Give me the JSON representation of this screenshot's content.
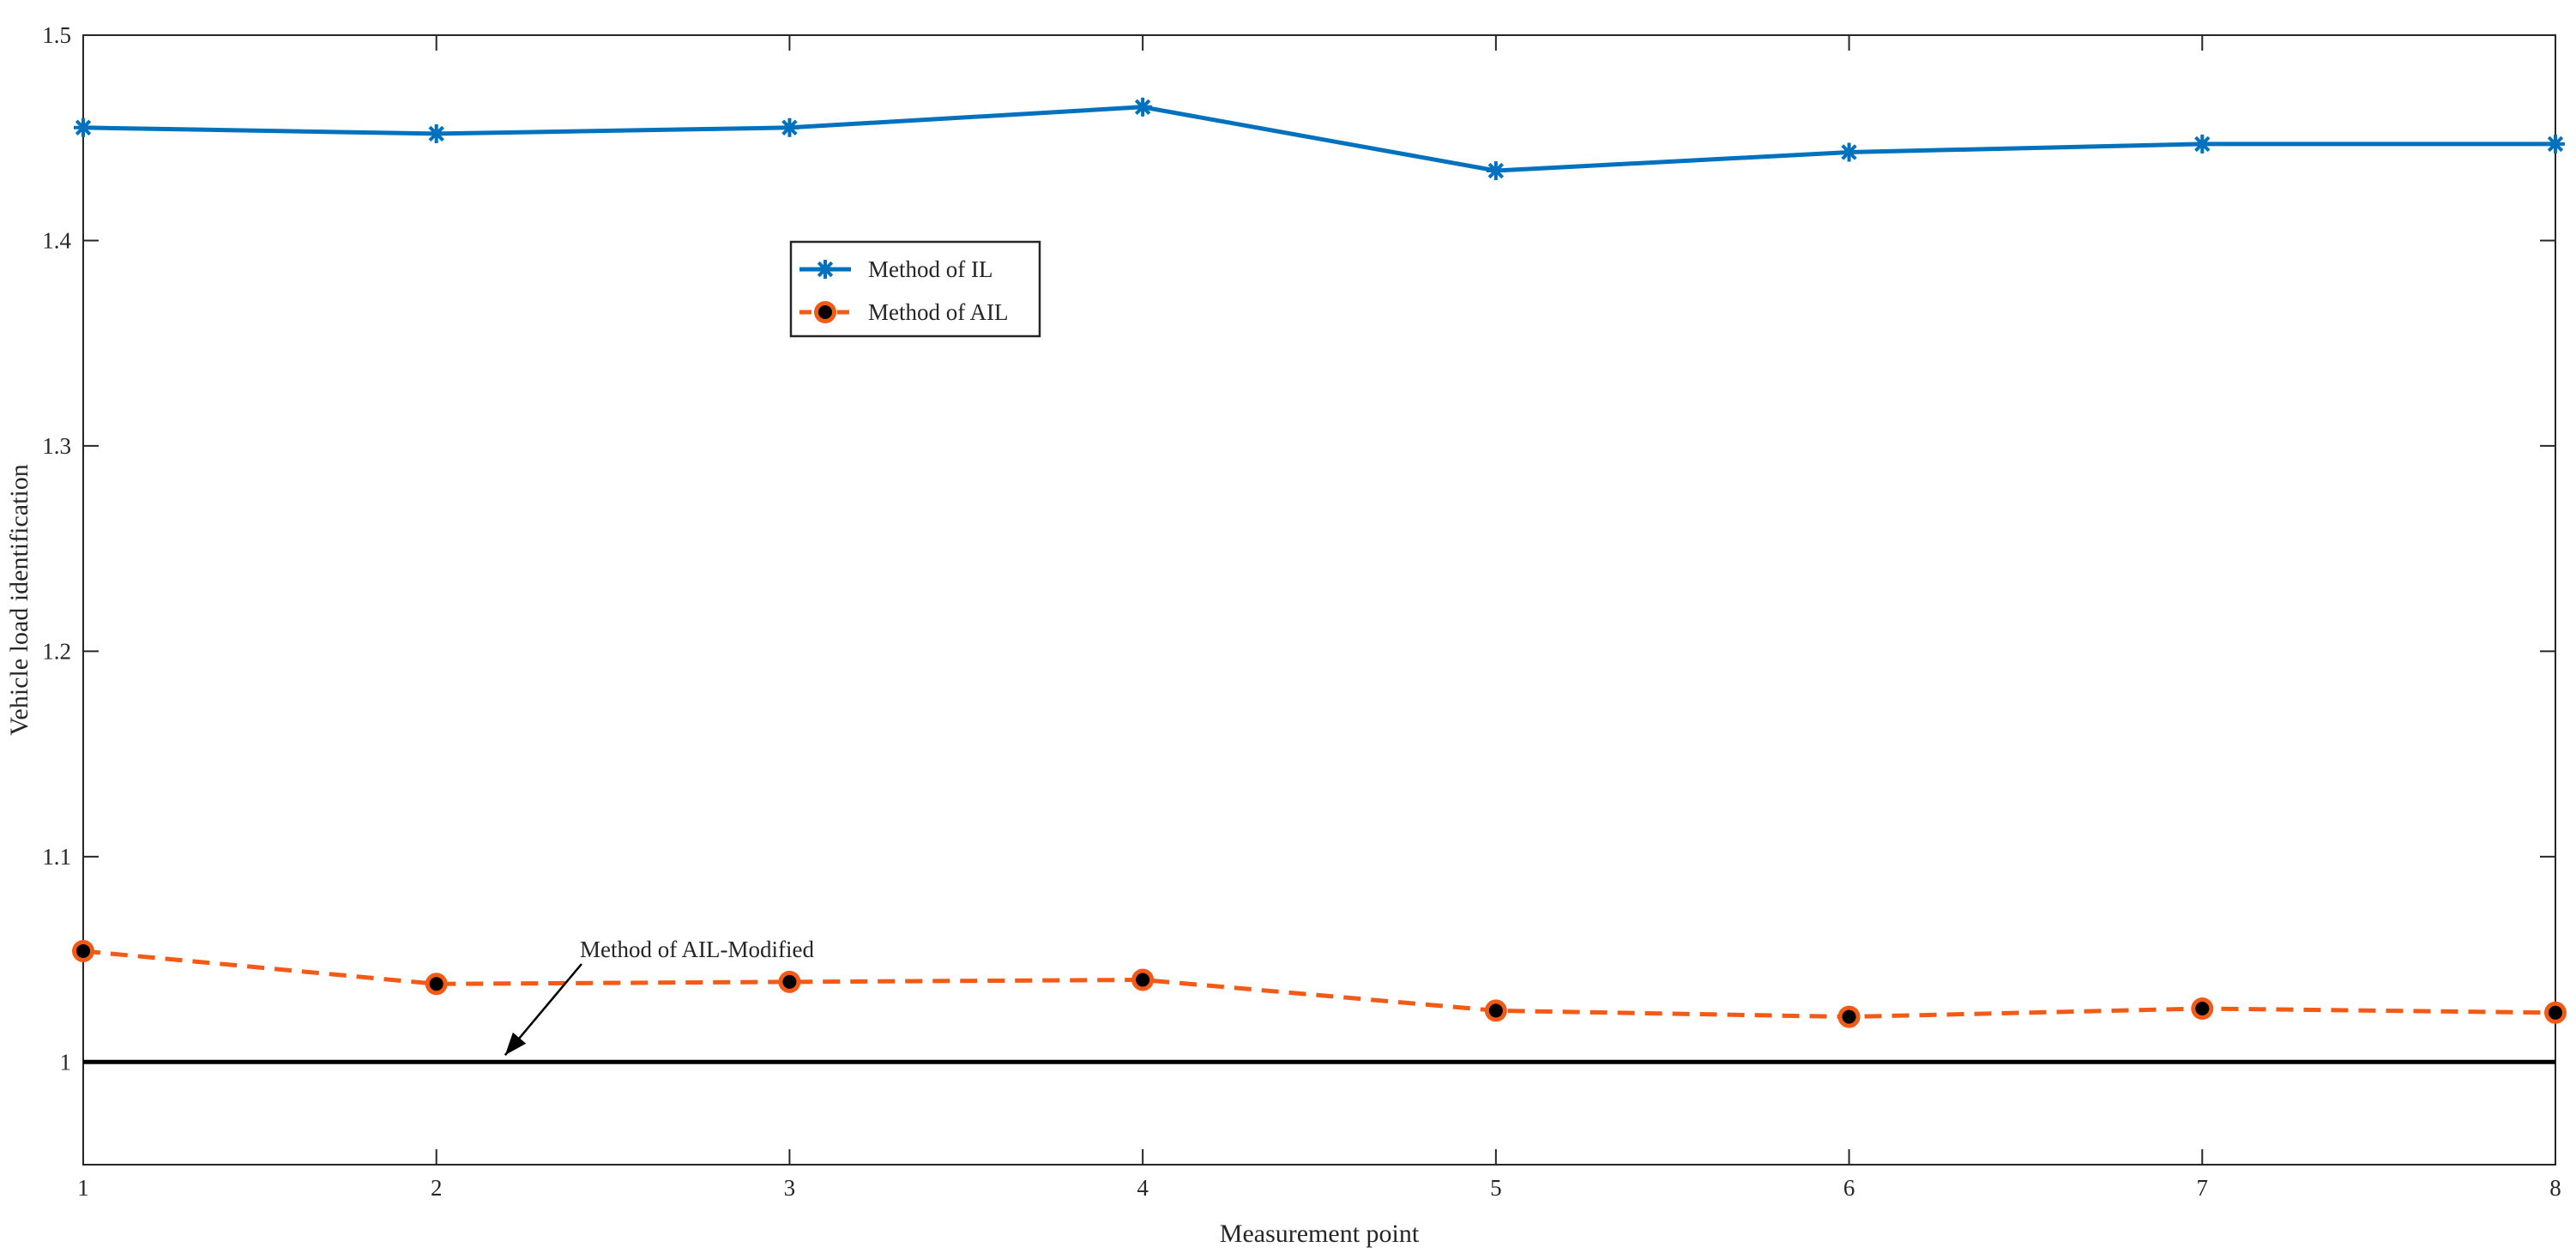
{
  "chart_data": {
    "type": "line",
    "xlabel": "Measurement point",
    "ylabel": "Vehicle load identification",
    "x": [
      1,
      2,
      3,
      4,
      5,
      6,
      7,
      8
    ],
    "xlim": [
      1,
      8
    ],
    "ylim": [
      0.95,
      1.5
    ],
    "xticks": [
      1,
      2,
      3,
      4,
      5,
      6,
      7,
      8
    ],
    "yticks": [
      1,
      1.1,
      1.2,
      1.3,
      1.4,
      1.5
    ],
    "ytick_labels": [
      "1",
      "1.1",
      "1.2",
      "1.3",
      "1.4",
      "1.5"
    ],
    "grid": false,
    "legend_position": "upper-center-left",
    "series": [
      {
        "name": "Method of IL",
        "values": [
          1.455,
          1.452,
          1.455,
          1.465,
          1.434,
          1.443,
          1.447,
          1.447
        ],
        "color": "#0072BD",
        "line_style": "solid",
        "marker": "asterisk"
      },
      {
        "name": "Method of AIL",
        "values": [
          1.054,
          1.038,
          1.039,
          1.04,
          1.025,
          1.022,
          1.026,
          1.024
        ],
        "color": "#F25A16",
        "line_style": "dashed",
        "marker": "circle-filled-black"
      },
      {
        "name": "Method of AIL-Modified",
        "values": [
          1.0,
          1.0,
          1.0,
          1.0,
          1.0,
          1.0,
          1.0,
          1.0
        ],
        "color": "#000000",
        "line_style": "solid",
        "marker": "none",
        "in_legend": false
      }
    ],
    "annotations": [
      {
        "text": "Method of AIL-Modified",
        "points_to": {
          "x": 2.18,
          "y": 1.0
        }
      }
    ]
  }
}
